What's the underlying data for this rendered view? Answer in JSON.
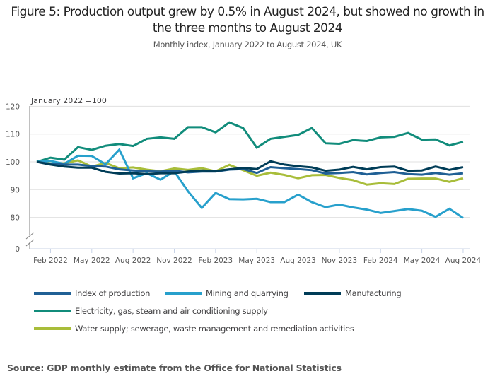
{
  "chart_data": {
    "type": "line",
    "title": "Figure 5: Production output grew by 0.5% in August 2024, but showed no growth in the three months to August 2024",
    "subtitle": "Monthly index, January 2022 to August 2024, UK",
    "ylabel": "January 2022 =100",
    "xlabel": "",
    "ylim": [
      0,
      120
    ],
    "y_axis_break": [
      0,
      75
    ],
    "yticks": [
      0,
      80,
      90,
      100,
      110,
      120
    ],
    "ytick_labels": [
      "0",
      "80",
      "90",
      "100",
      "110",
      "120"
    ],
    "grid": true,
    "legend_position": "bottom",
    "x": [
      "Jan 2022",
      "Feb 2022",
      "Mar 2022",
      "Apr 2022",
      "May 2022",
      "Jun 2022",
      "Jul 2022",
      "Aug 2022",
      "Sep 2022",
      "Oct 2022",
      "Nov 2022",
      "Dec 2022",
      "Jan 2023",
      "Feb 2023",
      "Mar 2023",
      "Apr 2023",
      "May 2023",
      "Jun 2023",
      "Jul 2023",
      "Aug 2023",
      "Sep 2023",
      "Oct 2023",
      "Nov 2023",
      "Dec 2023",
      "Jan 2024",
      "Feb 2024",
      "Mar 2024",
      "Apr 2024",
      "May 2024",
      "Jun 2024",
      "Jul 2024",
      "Aug 2024"
    ],
    "xtick_labels": [
      "Feb 2022",
      "May 2022",
      "Aug 2022",
      "Nov 2022",
      "Feb 2023",
      "May 2023",
      "Aug 2023",
      "Nov 2023",
      "Feb 2024",
      "May 2024",
      "Aug 2024"
    ],
    "xtick_indices": [
      1,
      4,
      7,
      10,
      13,
      16,
      19,
      22,
      25,
      28,
      31
    ],
    "series": [
      {
        "name": "Index of production",
        "color": "#206095",
        "values": [
          100,
          99.3,
          99.0,
          99.0,
          98.5,
          98.3,
          97.3,
          96.9,
          96.6,
          96.5,
          96.8,
          96.2,
          96.5,
          96.5,
          97.2,
          97.4,
          96.0,
          98.1,
          97.7,
          97.4,
          97.0,
          95.8,
          96.0,
          96.3,
          95.5,
          96.0,
          96.3,
          95.6,
          95.4,
          96.0,
          95.4,
          95.9
        ]
      },
      {
        "name": "Mining and quarrying",
        "color": "#27a0cc",
        "values": [
          100,
          100.3,
          99.3,
          102.2,
          102.1,
          99.1,
          104.4,
          94.1,
          95.9,
          93.6,
          96.6,
          89.4,
          83.4,
          88.8,
          86.6,
          86.5,
          86.7,
          85.5,
          85.5,
          88.2,
          85.5,
          83.7,
          84.6,
          83.6,
          82.8,
          81.6,
          82.3,
          83.0,
          82.4,
          80.2,
          83.1,
          79.8
        ]
      },
      {
        "name": "Manufacturing",
        "color": "#003c57",
        "values": [
          100,
          99.0,
          98.3,
          97.9,
          97.9,
          96.4,
          95.8,
          95.9,
          95.6,
          95.9,
          95.9,
          96.5,
          96.9,
          96.7,
          97.3,
          97.8,
          97.4,
          100.2,
          99.0,
          98.4,
          98.0,
          96.8,
          97.2,
          98.2,
          97.3,
          98.1,
          98.3,
          96.8,
          96.9,
          98.3,
          97.1,
          98.1
        ]
      },
      {
        "name": "Electricity, gas, steam and air conditioning supply",
        "color": "#118c7b",
        "values": [
          100,
          101.5,
          100.8,
          105.3,
          104.3,
          105.8,
          106.4,
          105.7,
          108.3,
          108.8,
          108.3,
          112.5,
          112.5,
          110.6,
          114.2,
          112.2,
          105.1,
          108.3,
          109.0,
          109.7,
          112.2,
          106.7,
          106.5,
          107.8,
          107.5,
          108.8,
          109.0,
          110.4,
          108.0,
          108.1,
          105.9,
          107.2
        ]
      },
      {
        "name": "Water supply; sewerage, waste management and remediation activities",
        "color": "#a8bd3a",
        "values": [
          100,
          99.4,
          99.5,
          100.5,
          98.3,
          99.6,
          97.7,
          98.0,
          97.2,
          96.6,
          97.6,
          97.1,
          97.7,
          96.6,
          98.9,
          97.0,
          95.0,
          96.1,
          95.3,
          94.1,
          95.2,
          95.3,
          94.2,
          93.4,
          91.8,
          92.3,
          92.0,
          93.9,
          94.0,
          94.0,
          92.8,
          94.1
        ]
      }
    ],
    "draw_order": [
      4,
      3,
      1,
      0,
      2
    ]
  },
  "source": "Source: GDP monthly estimate from the Office for National Statistics"
}
